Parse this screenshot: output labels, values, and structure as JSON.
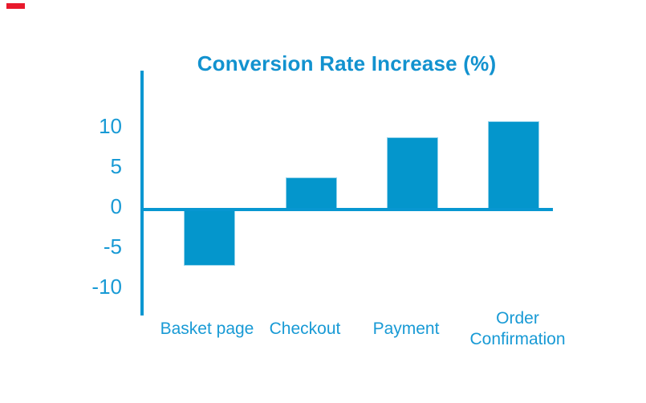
{
  "decoration": {
    "red_marker_color": "#e8192c"
  },
  "chart_data": {
    "type": "bar",
    "title": "Conversion Rate Increase (%)",
    "categories": [
      "Basket page",
      "Checkout",
      "Payment",
      "Order Confirmation"
    ],
    "values": [
      -7,
      4,
      9,
      11
    ],
    "yticks": [
      10,
      5,
      0,
      -5,
      -10
    ],
    "ylim": [
      -10,
      12
    ],
    "xlabel": "",
    "ylabel": "",
    "legend": "none",
    "grid": "off",
    "bar_color": "#0496cc",
    "axis_color": "#0897d1",
    "label_color": "#189ad5",
    "title_color": "#1292cf",
    "background_color": "#ffffff"
  }
}
